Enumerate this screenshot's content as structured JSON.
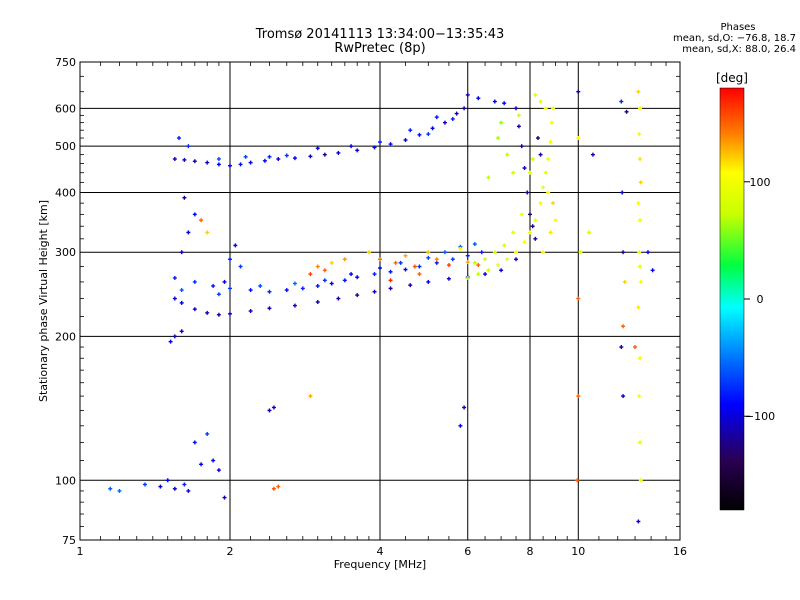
{
  "title_line1": "Tromsø 20141113 13:34:00−13:35:43",
  "title_line2": "RwPretec (8p)",
  "info": {
    "header": "Phases",
    "line_o": "mean, sd,O: −76.8, 18.7",
    "line_x": "mean, sd,X:  88.0, 26.4"
  },
  "chart_data": {
    "type": "scatter",
    "xlabel": "Frequency [MHz]",
    "ylabel": "Stationary phase Virtual Height [km]",
    "x_scale": "log",
    "y_scale": "log",
    "xlim": [
      1,
      16
    ],
    "ylim": [
      75,
      750
    ],
    "x_ticks": [
      1,
      2,
      4,
      6,
      8,
      10,
      16
    ],
    "x_tick_labels": [
      "1",
      "2",
      "4",
      "6",
      "8",
      "10",
      "16"
    ],
    "y_ticks": [
      75,
      100,
      200,
      300,
      400,
      500,
      600,
      750
    ],
    "y_tick_labels": [
      "75",
      "100",
      "200",
      "300",
      "400",
      "500",
      "600",
      "750"
    ],
    "grid": true,
    "colorbar": {
      "label": "[deg]",
      "range": [
        -180,
        180
      ],
      "ticks": [
        100,
        0,
        -100
      ],
      "tick_labels": [
        "100",
        "0",
        "−100"
      ]
    },
    "series": [
      {
        "points": [
          [
            1.55,
            470,
            -110
          ],
          [
            1.62,
            468,
            -105
          ],
          [
            1.7,
            465,
            -115
          ],
          [
            1.8,
            462,
            -100
          ],
          [
            1.9,
            458,
            -90
          ],
          [
            2.0,
            455,
            -95
          ],
          [
            2.1,
            458,
            -85
          ],
          [
            2.2,
            462,
            -95
          ],
          [
            2.35,
            466,
            -88
          ],
          [
            2.5,
            470,
            -100
          ],
          [
            2.7,
            472,
            -92
          ],
          [
            2.9,
            476,
            -110
          ],
          [
            3.1,
            480,
            -118
          ],
          [
            3.3,
            484,
            -105
          ],
          [
            3.6,
            490,
            -98
          ],
          [
            3.9,
            497,
            -90
          ],
          [
            4.2,
            505,
            -88
          ],
          [
            4.5,
            515,
            -92
          ],
          [
            4.8,
            528,
            -85
          ],
          [
            5.1,
            545,
            -95
          ],
          [
            5.4,
            560,
            -110
          ],
          [
            5.7,
            585,
            -120
          ],
          [
            5.9,
            600,
            -112
          ],
          [
            1.58,
            520,
            -80
          ],
          [
            1.65,
            500,
            -75
          ],
          [
            2.15,
            475,
            -70
          ],
          [
            2.6,
            478,
            -72
          ],
          [
            3.0,
            495,
            -95
          ],
          [
            3.5,
            500,
            -100
          ],
          [
            4.6,
            540,
            -78
          ],
          [
            5.2,
            575,
            -82
          ],
          [
            6.3,
            630,
            -100
          ],
          [
            6.8,
            620,
            -95
          ],
          [
            7.1,
            615,
            -88
          ],
          [
            1.9,
            470,
            -65
          ],
          [
            2.4,
            475,
            -78
          ],
          [
            4.0,
            510,
            -82
          ],
          [
            5.0,
            530,
            -70
          ],
          [
            5.6,
            570,
            -80
          ],
          [
            6.0,
            640,
            -105
          ]
        ]
      },
      {
        "points": [
          [
            1.55,
            240,
            -95
          ],
          [
            1.6,
            235,
            -90
          ],
          [
            1.7,
            228,
            -100
          ],
          [
            1.8,
            224,
            -110
          ],
          [
            1.9,
            222,
            -115
          ],
          [
            2.0,
            223,
            -105
          ],
          [
            2.2,
            226,
            -110
          ],
          [
            2.4,
            229,
            -112
          ],
          [
            2.7,
            232,
            -108
          ],
          [
            3.0,
            236,
            -115
          ],
          [
            3.3,
            240,
            -110
          ],
          [
            3.6,
            244,
            -118
          ],
          [
            3.9,
            248,
            -108
          ],
          [
            4.2,
            252,
            -112
          ],
          [
            4.6,
            256,
            -110
          ],
          [
            5.0,
            260,
            -100
          ],
          [
            5.5,
            264,
            -105
          ],
          [
            6.0,
            266,
            -110
          ],
          [
            6.5,
            270,
            -100
          ],
          [
            7.0,
            275,
            -102
          ],
          [
            7.5,
            290,
            -108
          ]
        ]
      },
      {
        "points": [
          [
            1.55,
            265,
            -80
          ],
          [
            1.7,
            260,
            -75
          ],
          [
            1.85,
            255,
            -82
          ],
          [
            2.0,
            252,
            -70
          ],
          [
            2.2,
            250,
            -85
          ],
          [
            2.4,
            248,
            -78
          ],
          [
            2.6,
            250,
            -88
          ],
          [
            2.8,
            252,
            -80
          ],
          [
            3.0,
            255,
            -84
          ],
          [
            3.2,
            258,
            -90
          ],
          [
            3.4,
            262,
            -86
          ],
          [
            3.6,
            266,
            -92
          ],
          [
            3.9,
            270,
            -80
          ],
          [
            4.2,
            273,
            -85
          ],
          [
            4.5,
            276,
            -90
          ],
          [
            4.8,
            280,
            -75
          ],
          [
            5.2,
            285,
            -82
          ],
          [
            5.6,
            290,
            -70
          ],
          [
            6.0,
            295,
            -78
          ],
          [
            6.4,
            300,
            -80
          ],
          [
            1.6,
            250,
            -60
          ],
          [
            1.9,
            245,
            -70
          ],
          [
            2.3,
            255,
            -65
          ],
          [
            2.7,
            258,
            -55
          ],
          [
            3.1,
            262,
            -75
          ],
          [
            3.5,
            270,
            -95
          ],
          [
            4.0,
            278,
            -100
          ],
          [
            4.4,
            285,
            -72
          ],
          [
            5.0,
            292,
            -68
          ],
          [
            5.4,
            300,
            -62
          ],
          [
            5.8,
            308,
            -58
          ],
          [
            6.2,
            312,
            -60
          ]
        ]
      },
      {
        "points": [
          [
            3.0,
            280,
            140
          ],
          [
            3.1,
            275,
            150
          ],
          [
            3.2,
            285,
            120
          ],
          [
            3.4,
            290,
            135
          ],
          [
            4.0,
            290,
            145
          ],
          [
            4.3,
            285,
            150
          ],
          [
            4.5,
            295,
            130
          ],
          [
            4.7,
            280,
            155
          ],
          [
            5.0,
            300,
            125
          ],
          [
            5.2,
            290,
            140
          ],
          [
            5.5,
            282,
            160
          ],
          [
            4.8,
            270,
            150
          ],
          [
            4.2,
            262,
            170
          ],
          [
            3.8,
            300,
            120
          ],
          [
            5.8,
            305,
            110
          ],
          [
            6.0,
            286,
            130
          ],
          [
            6.3,
            282,
            150
          ],
          [
            2.9,
            270,
            160
          ]
        ]
      },
      {
        "points": [
          [
            6.0,
            265,
            60
          ],
          [
            6.3,
            270,
            70
          ],
          [
            6.6,
            275,
            80
          ],
          [
            6.9,
            282,
            90
          ],
          [
            7.2,
            290,
            95
          ],
          [
            7.5,
            300,
            100
          ],
          [
            7.8,
            315,
            105
          ],
          [
            8.0,
            330,
            100
          ],
          [
            8.2,
            350,
            95
          ],
          [
            8.4,
            380,
            100
          ],
          [
            8.5,
            410,
            95
          ],
          [
            8.6,
            440,
            90
          ],
          [
            8.7,
            470,
            100
          ],
          [
            8.8,
            510,
            95
          ],
          [
            8.85,
            560,
            100
          ],
          [
            8.9,
            600,
            95
          ],
          [
            8.4,
            620,
            90
          ],
          [
            8.2,
            640,
            85
          ],
          [
            8.6,
            600,
            100
          ],
          [
            8.3,
            520,
            95
          ],
          [
            8.1,
            470,
            80
          ],
          [
            8.0,
            440,
            90
          ],
          [
            7.9,
            400,
            100
          ],
          [
            7.7,
            360,
            95
          ],
          [
            7.4,
            330,
            90
          ],
          [
            7.1,
            310,
            85
          ],
          [
            6.8,
            300,
            80
          ],
          [
            6.5,
            290,
            75
          ],
          [
            6.2,
            285,
            70
          ],
          [
            7.0,
            560,
            60
          ],
          [
            7.2,
            480,
            70
          ],
          [
            7.4,
            440,
            75
          ],
          [
            6.9,
            520,
            65
          ],
          [
            6.6,
            430,
            70
          ],
          [
            7.6,
            580,
            80
          ],
          [
            8.7,
            400,
            110
          ],
          [
            8.9,
            380,
            120
          ],
          [
            9.0,
            350,
            105
          ],
          [
            8.8,
            330,
            115
          ],
          [
            8.5,
            300,
            110
          ]
        ]
      },
      {
        "points": [
          [
            7.6,
            550,
            -120
          ],
          [
            7.7,
            500,
            -115
          ],
          [
            7.8,
            450,
            -110
          ],
          [
            7.9,
            400,
            -120
          ],
          [
            8.0,
            360,
            -130
          ],
          [
            8.1,
            340,
            -125
          ],
          [
            8.2,
            320,
            -120
          ],
          [
            7.5,
            600,
            -110
          ],
          [
            8.3,
            520,
            -118
          ],
          [
            8.4,
            480,
            -112
          ]
        ]
      },
      {
        "points": [
          [
            1.15,
            96,
            -60
          ],
          [
            1.2,
            95,
            -55
          ],
          [
            1.35,
            98,
            -70
          ],
          [
            1.45,
            97,
            -100
          ],
          [
            1.55,
            96,
            -110
          ],
          [
            1.65,
            95,
            -105
          ],
          [
            1.5,
            100,
            -90
          ],
          [
            1.62,
            98,
            -80
          ],
          [
            1.75,
            108,
            -95
          ],
          [
            1.85,
            110,
            -90
          ],
          [
            1.9,
            105,
            -100
          ],
          [
            1.95,
            92,
            -110
          ],
          [
            1.7,
            120,
            -85
          ],
          [
            1.8,
            125,
            -70
          ],
          [
            1.55,
            200,
            -110
          ],
          [
            1.6,
            205,
            -100
          ],
          [
            1.52,
            195,
            -90
          ],
          [
            2.5,
            97,
            150
          ],
          [
            2.45,
            96,
            155
          ],
          [
            2.4,
            140,
            -110
          ],
          [
            2.45,
            142,
            -105
          ],
          [
            2.9,
            150,
            130
          ],
          [
            5.8,
            130,
            -100
          ],
          [
            5.9,
            142,
            -110
          ]
        ]
      },
      {
        "points": [
          [
            1.6,
            300,
            -110
          ],
          [
            1.65,
            330,
            -100
          ],
          [
            1.7,
            360,
            -90
          ],
          [
            1.62,
            390,
            -115
          ],
          [
            1.75,
            350,
            150
          ],
          [
            1.8,
            330,
            120
          ],
          [
            2.0,
            290,
            -80
          ],
          [
            2.05,
            310,
            -90
          ],
          [
            2.1,
            280,
            -70
          ],
          [
            1.95,
            260,
            -95
          ]
        ]
      },
      {
        "points": [
          [
            10.0,
            650,
            -120
          ],
          [
            10.0,
            520,
            110
          ],
          [
            10.1,
            300,
            90
          ],
          [
            10.0,
            240,
            150
          ],
          [
            10.0,
            150,
            150
          ],
          [
            9.95,
            100,
            150
          ],
          [
            10.5,
            330,
            80
          ],
          [
            10.7,
            480,
            -110
          ],
          [
            12.2,
            620,
            -80
          ],
          [
            12.25,
            400,
            -100
          ],
          [
            12.3,
            300,
            -120
          ],
          [
            12.2,
            190,
            -110
          ],
          [
            12.3,
            150,
            -105
          ],
          [
            12.4,
            260,
            120
          ],
          [
            12.3,
            210,
            150
          ],
          [
            13.2,
            650,
            120
          ],
          [
            13.3,
            600,
            105
          ],
          [
            13.25,
            530,
            110
          ],
          [
            13.3,
            470,
            115
          ],
          [
            13.35,
            420,
            120
          ],
          [
            13.2,
            380,
            110
          ],
          [
            13.3,
            350,
            100
          ],
          [
            13.25,
            300,
            95
          ],
          [
            13.3,
            280,
            90
          ],
          [
            13.35,
            260,
            105
          ],
          [
            13.2,
            230,
            115
          ],
          [
            13.3,
            180,
            110
          ],
          [
            13.25,
            150,
            105
          ],
          [
            13.3,
            120,
            90
          ],
          [
            13.35,
            100,
            95
          ],
          [
            13.2,
            82,
            -110
          ],
          [
            13.8,
            300,
            -100
          ],
          [
            14.1,
            275,
            -90
          ],
          [
            12.5,
            590,
            -130
          ],
          [
            13.0,
            190,
            150
          ]
        ]
      }
    ]
  }
}
